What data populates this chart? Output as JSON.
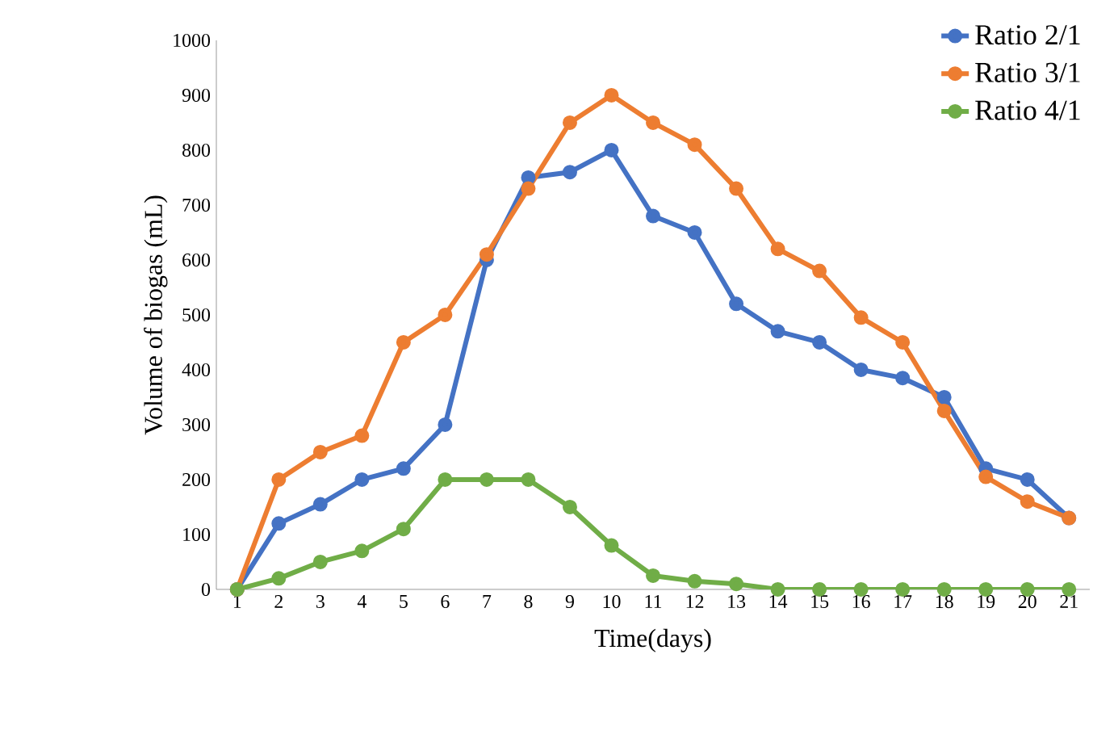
{
  "chart_data": {
    "type": "line",
    "xlabel": "Time(days)",
    "ylabel": "Volume  of biogas  (mL)",
    "categories": [
      "1",
      "2",
      "3",
      "4",
      "5",
      "6",
      "7",
      "8",
      "9",
      "10",
      "11",
      "12",
      "13",
      "14",
      "15",
      "16",
      "17",
      "18",
      "19",
      "20",
      "21"
    ],
    "series": [
      {
        "name": "Ratio 2/1",
        "color": "#4472c4",
        "values": [
          0,
          120,
          155,
          200,
          220,
          300,
          600,
          750,
          760,
          800,
          680,
          650,
          520,
          470,
          450,
          400,
          385,
          350,
          220,
          200,
          130
        ]
      },
      {
        "name": "Ratio 3/1",
        "color": "#ed7d31",
        "values": [
          0,
          200,
          250,
          280,
          450,
          500,
          610,
          730,
          850,
          900,
          850,
          810,
          730,
          620,
          580,
          495,
          450,
          325,
          205,
          160,
          130
        ]
      },
      {
        "name": "Ratio 4/1",
        "color": "#70ad47",
        "values": [
          0,
          20,
          50,
          70,
          110,
          200,
          200,
          200,
          150,
          80,
          25,
          15,
          10,
          0,
          0,
          0,
          0,
          0,
          0,
          0,
          0
        ]
      }
    ],
    "ylim": [
      0,
      1000
    ],
    "yticks": [
      0,
      100,
      200,
      300,
      400,
      500,
      600,
      700,
      800,
      900,
      1000
    ],
    "legend": "top right",
    "marker": "circle",
    "line_style": "solid",
    "grid": false
  }
}
